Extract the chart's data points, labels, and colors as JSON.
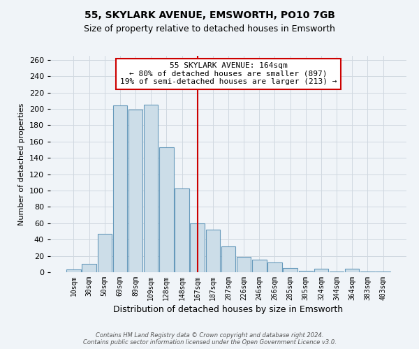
{
  "title": "55, SKYLARK AVENUE, EMSWORTH, PO10 7GB",
  "subtitle": "Size of property relative to detached houses in Emsworth",
  "xlabel": "Distribution of detached houses by size in Emsworth",
  "ylabel": "Number of detached properties",
  "bar_labels": [
    "10sqm",
    "30sqm",
    "50sqm",
    "69sqm",
    "89sqm",
    "109sqm",
    "128sqm",
    "148sqm",
    "167sqm",
    "187sqm",
    "207sqm",
    "226sqm",
    "246sqm",
    "266sqm",
    "285sqm",
    "305sqm",
    "324sqm",
    "344sqm",
    "364sqm",
    "383sqm",
    "403sqm"
  ],
  "bar_values": [
    3,
    10,
    47,
    204,
    199,
    205,
    153,
    103,
    60,
    52,
    32,
    19,
    15,
    12,
    5,
    2,
    4,
    1,
    4,
    1,
    1
  ],
  "bar_color": "#ccdde8",
  "bar_edge_color": "#6699bb",
  "annotation_line_x_label": "167sqm",
  "annotation_line_color": "#cc0000",
  "annotation_box_text": "55 SKYLARK AVENUE: 164sqm\n← 80% of detached houses are smaller (897)\n19% of semi-detached houses are larger (213) →",
  "annotation_box_facecolor": "white",
  "annotation_box_edgecolor": "#cc0000",
  "ylim": [
    0,
    265
  ],
  "yticks": [
    0,
    20,
    40,
    60,
    80,
    100,
    120,
    140,
    160,
    180,
    200,
    220,
    240,
    260
  ],
  "grid_color": "#d0d8e0",
  "footer_text": "Contains HM Land Registry data © Crown copyright and database right 2024.\nContains public sector information licensed under the Open Government Licence v3.0.",
  "background_color": "#f0f4f8",
  "title_fontsize": 10,
  "subtitle_fontsize": 9
}
